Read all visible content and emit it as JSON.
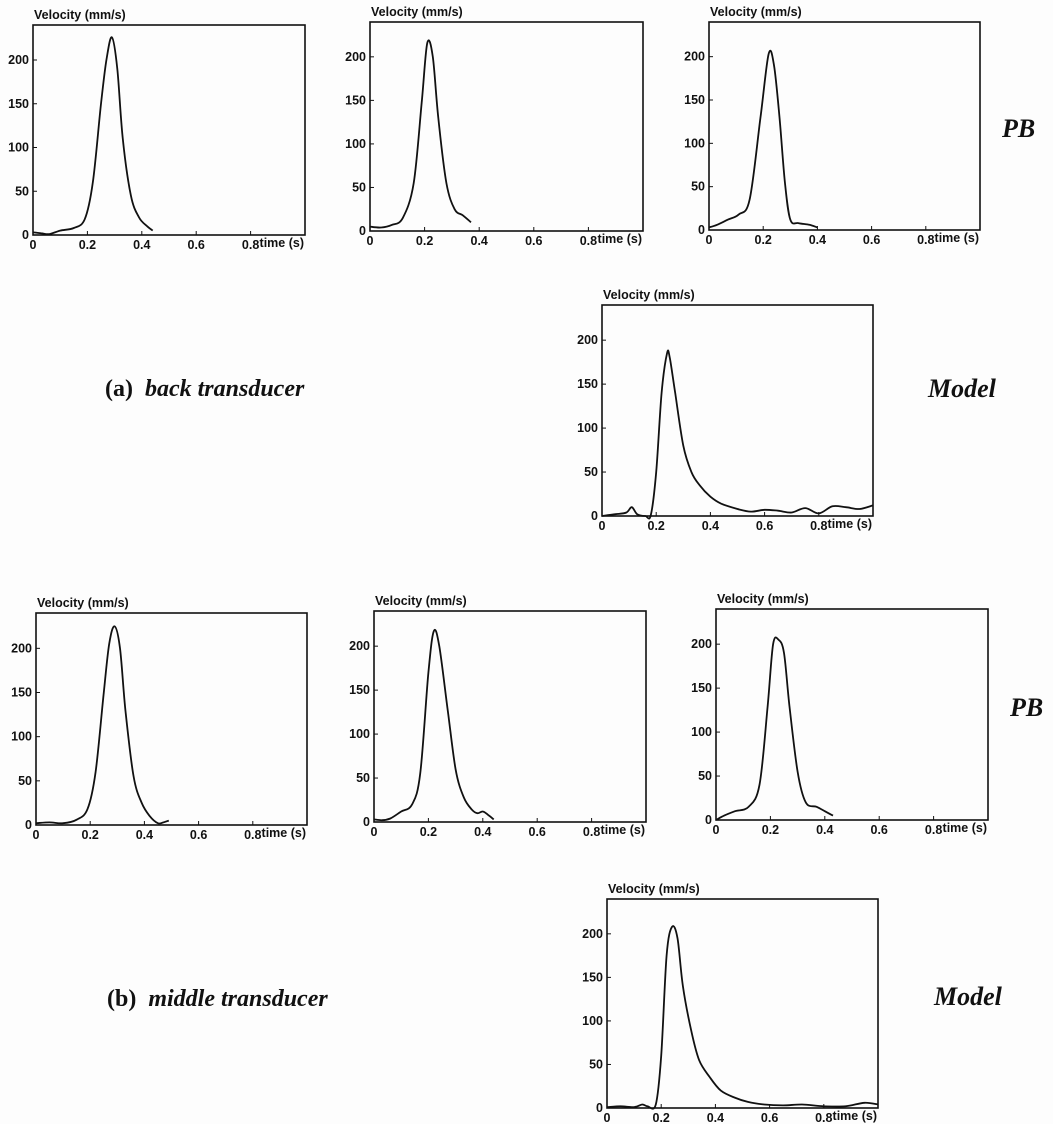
{
  "sections": [
    {
      "letter": "(a)",
      "name": "back transducer",
      "pb_label": "PB",
      "model_label": "Model"
    },
    {
      "letter": "(b)",
      "name": "middle transducer",
      "pb_label": "PB",
      "model_label": "Model"
    }
  ],
  "chart_data": [
    {
      "id": "a-pb-1",
      "type": "line",
      "title": "Velocity (mm/s)",
      "xlabel": "time (s)",
      "x_ticks": [
        "0",
        "0.2",
        "0.4",
        "0.6",
        "0.8"
      ],
      "y_ticks": [
        "0",
        "50",
        "100",
        "150",
        "200"
      ],
      "xlim": [
        0,
        1.0
      ],
      "ylim": [
        0,
        240
      ],
      "series": [
        {
          "x": [
            0,
            0.03,
            0.06,
            0.1,
            0.15,
            0.19,
            0.22,
            0.25,
            0.27,
            0.29,
            0.31,
            0.33,
            0.36,
            0.39,
            0.42,
            0.44
          ],
          "y": [
            3,
            2,
            1,
            5,
            8,
            18,
            60,
            150,
            200,
            226,
            190,
            110,
            45,
            20,
            10,
            5
          ]
        }
      ]
    },
    {
      "id": "a-pb-2",
      "type": "line",
      "title": "Velocity (mm/s)",
      "xlabel": "time (s)",
      "x_ticks": [
        "0",
        "0.2",
        "0.4",
        "0.6",
        "0.8"
      ],
      "y_ticks": [
        "0",
        "50",
        "100",
        "150",
        "200"
      ],
      "xlim": [
        0,
        1.0
      ],
      "ylim": [
        0,
        240
      ],
      "series": [
        {
          "x": [
            0,
            0.04,
            0.08,
            0.12,
            0.16,
            0.19,
            0.21,
            0.23,
            0.25,
            0.28,
            0.31,
            0.34,
            0.37
          ],
          "y": [
            5,
            4,
            7,
            15,
            55,
            150,
            216,
            200,
            130,
            55,
            25,
            18,
            10
          ]
        }
      ]
    },
    {
      "id": "a-pb-3",
      "type": "line",
      "title": "Velocity (mm/s)",
      "xlabel": "time (s)",
      "x_ticks": [
        "0",
        "0.2",
        "0.4",
        "0.6",
        "0.8"
      ],
      "y_ticks": [
        "0",
        "50",
        "100",
        "150",
        "200"
      ],
      "xlim": [
        0,
        1.0
      ],
      "ylim": [
        0,
        240
      ],
      "series": [
        {
          "x": [
            0,
            0.03,
            0.07,
            0.11,
            0.15,
            0.19,
            0.22,
            0.24,
            0.26,
            0.28,
            0.3,
            0.33,
            0.37,
            0.4
          ],
          "y": [
            3,
            6,
            12,
            18,
            35,
            130,
            203,
            190,
            130,
            55,
            12,
            8,
            6,
            3
          ]
        }
      ]
    },
    {
      "id": "a-model",
      "type": "line",
      "title": "Velocity (mm/s)",
      "xlabel": "time (s)",
      "x_ticks": [
        "0",
        "0.2",
        "0.4",
        "0.6",
        "0.8"
      ],
      "y_ticks": [
        "0",
        "50",
        "100",
        "150",
        "200"
      ],
      "xlim": [
        0,
        1.0
      ],
      "ylim": [
        0,
        240
      ],
      "series": [
        {
          "x": [
            0,
            0.05,
            0.09,
            0.11,
            0.13,
            0.16,
            0.18,
            0.2,
            0.22,
            0.24,
            0.25,
            0.27,
            0.3,
            0.33,
            0.36,
            0.4,
            0.44,
            0.5,
            0.55,
            0.6,
            0.65,
            0.7,
            0.75,
            0.8,
            0.85,
            0.9,
            0.95,
            1.0
          ],
          "y": [
            0,
            2,
            4,
            10,
            2,
            0,
            1,
            50,
            140,
            185,
            180,
            140,
            80,
            50,
            35,
            22,
            14,
            8,
            5,
            7,
            6,
            4,
            9,
            3,
            11,
            10,
            8,
            12
          ]
        }
      ]
    },
    {
      "id": "b-pb-1",
      "type": "line",
      "title": "Velocity (mm/s)",
      "xlabel": "time (s)",
      "x_ticks": [
        "0",
        "0.2",
        "0.4",
        "0.6",
        "0.8"
      ],
      "y_ticks": [
        "0",
        "50",
        "100",
        "150",
        "200"
      ],
      "xlim": [
        0,
        1.0
      ],
      "ylim": [
        0,
        240
      ],
      "series": [
        {
          "x": [
            0,
            0.05,
            0.1,
            0.15,
            0.19,
            0.22,
            0.25,
            0.27,
            0.29,
            0.31,
            0.33,
            0.36,
            0.39,
            0.42,
            0.45,
            0.47,
            0.49
          ],
          "y": [
            2,
            3,
            2,
            6,
            18,
            60,
            150,
            205,
            225,
            200,
            130,
            55,
            25,
            10,
            2,
            3,
            5
          ]
        }
      ]
    },
    {
      "id": "b-pb-2",
      "type": "line",
      "title": "Velocity (mm/s)",
      "xlabel": "time (s)",
      "x_ticks": [
        "0",
        "0.2",
        "0.4",
        "0.6",
        "0.8"
      ],
      "y_ticks": [
        "0",
        "50",
        "100",
        "150",
        "200"
      ],
      "xlim": [
        0,
        1.0
      ],
      "ylim": [
        0,
        240
      ],
      "series": [
        {
          "x": [
            0,
            0.03,
            0.06,
            0.1,
            0.14,
            0.17,
            0.2,
            0.22,
            0.24,
            0.27,
            0.3,
            0.33,
            0.36,
            0.38,
            0.4,
            0.42,
            0.44
          ],
          "y": [
            3,
            2,
            4,
            12,
            20,
            55,
            170,
            217,
            200,
            130,
            60,
            28,
            14,
            10,
            12,
            8,
            3
          ]
        }
      ]
    },
    {
      "id": "b-pb-3",
      "type": "line",
      "title": "Velocity (mm/s)",
      "xlabel": "time (s)",
      "x_ticks": [
        "0",
        "0.2",
        "0.4",
        "0.6",
        "0.8"
      ],
      "y_ticks": [
        "0",
        "50",
        "100",
        "150",
        "200"
      ],
      "xlim": [
        0,
        1.0
      ],
      "ylim": [
        0,
        240
      ],
      "series": [
        {
          "x": [
            0,
            0.03,
            0.07,
            0.12,
            0.16,
            0.19,
            0.21,
            0.23,
            0.25,
            0.27,
            0.3,
            0.33,
            0.37,
            0.4,
            0.43
          ],
          "y": [
            0,
            5,
            10,
            15,
            40,
            130,
            200,
            205,
            190,
            130,
            55,
            20,
            15,
            10,
            5
          ]
        }
      ]
    },
    {
      "id": "b-model",
      "type": "line",
      "title": "Velocity (mm/s)",
      "xlabel": "time (s)",
      "x_ticks": [
        "0",
        "0.2",
        "0.4",
        "0.6",
        "0.8"
      ],
      "y_ticks": [
        "0",
        "50",
        "100",
        "150",
        "200"
      ],
      "xlim": [
        0,
        1.0
      ],
      "ylim": [
        0,
        240
      ],
      "series": [
        {
          "x": [
            0,
            0.05,
            0.1,
            0.13,
            0.15,
            0.18,
            0.2,
            0.22,
            0.24,
            0.26,
            0.28,
            0.31,
            0.34,
            0.38,
            0.42,
            0.47,
            0.52,
            0.58,
            0.65,
            0.72,
            0.8,
            0.88,
            0.95,
            1.0
          ],
          "y": [
            1,
            2,
            1,
            4,
            2,
            4,
            60,
            175,
            208,
            195,
            140,
            90,
            55,
            35,
            20,
            12,
            7,
            4,
            3,
            4,
            2,
            2,
            6,
            4
          ]
        }
      ]
    }
  ]
}
